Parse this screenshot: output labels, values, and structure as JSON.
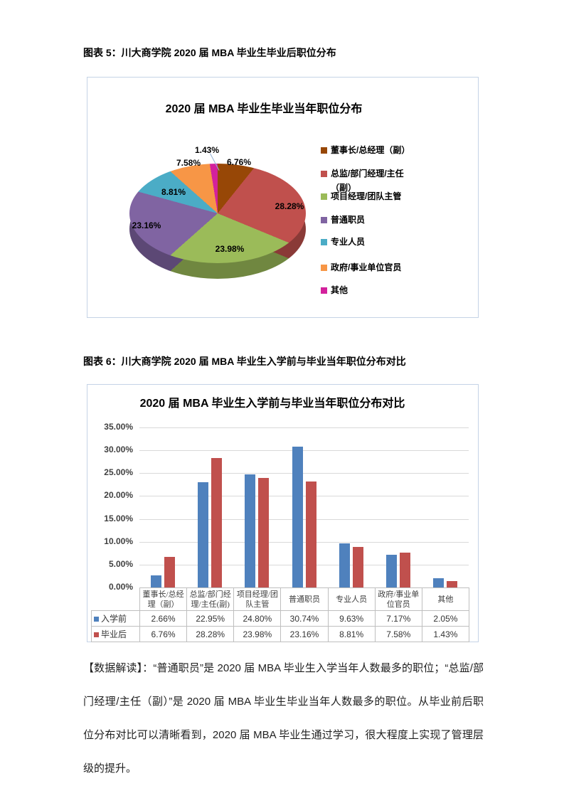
{
  "page": {
    "fig5_caption": "图表 5：川大商学院 2020 届 MBA 毕业生毕业后职位分布",
    "fig6_caption": "图表 6：川大商学院 2020 届 MBA 毕业生入学前与毕业当年职位分布对比",
    "analysis_label": "【数据解读】：",
    "analysis_body": "“普通职员”是 2020 届 MBA 毕业生入学当年人数最多的职位；“总监/部门经理/主任（副）”是 2020 届 MBA 毕业生毕业当年人数最多的职位。从毕业前后职位分布对比可以清晰看到，2020 届 MBA 毕业生通过学习，很大程度上实现了管理层级的提升。"
  },
  "chart_data": [
    {
      "type": "pie",
      "effect": "3d",
      "title": "2020 届 MBA 毕业生毕业当年职位分布",
      "labels": [
        "董事长/总经理（副）",
        "总监/部门经理/主任（副）",
        "项目经理/团队主管",
        "普通职员",
        "专业人员",
        "政府/事业单位官员",
        "其他"
      ],
      "values": [
        6.76,
        28.28,
        23.98,
        23.16,
        8.81,
        7.58,
        1.43
      ],
      "value_labels": [
        "6.76%",
        "28.28%",
        "23.98%",
        "23.16%",
        "8.81%",
        "7.58%",
        "1.43%"
      ],
      "colors": [
        "#974706",
        "#C0504D",
        "#9BBB59",
        "#8064A2",
        "#4BACC6",
        "#F79646",
        "#D3219C"
      ],
      "legend_position": "right",
      "start_angle": 0,
      "direction": "clockwise"
    },
    {
      "type": "bar",
      "title": "2020 届 MBA 毕业生入学前与毕业当年职位分布对比",
      "categories": [
        "董事长/总经理（副）",
        "总监/部门经理/主任(副)",
        "项目经理/团队主管",
        "普通职员",
        "专业人员",
        "政府/事业单位官员",
        "其他"
      ],
      "series": [
        {
          "name": "入学前",
          "color": "#4F81BD",
          "values": [
            2.66,
            22.95,
            24.8,
            30.74,
            9.63,
            7.17,
            2.05
          ],
          "value_labels": [
            "2.66%",
            "22.95%",
            "24.80%",
            "30.74%",
            "9.63%",
            "7.17%",
            "2.05%"
          ]
        },
        {
          "name": "毕业后",
          "color": "#C0504D",
          "values": [
            6.76,
            28.28,
            23.98,
            23.16,
            8.81,
            7.58,
            1.43
          ],
          "value_labels": [
            "6.76%",
            "28.28%",
            "23.98%",
            "23.16%",
            "8.81%",
            "7.58%",
            "1.43%"
          ]
        }
      ],
      "ylim": [
        0,
        35
      ],
      "yticks": [
        "0.00%",
        "5.00%",
        "10.00%",
        "15.00%",
        "20.00%",
        "25.00%",
        "30.00%",
        "35.00%"
      ],
      "grid": true,
      "data_table": true,
      "gridline_color": "#d9d9d9"
    }
  ]
}
